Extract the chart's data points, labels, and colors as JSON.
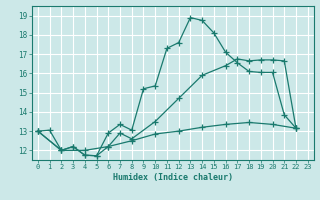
{
  "xlabel": "Humidex (Indice chaleur)",
  "bg_color": "#cce8e8",
  "grid_color": "#ffffff",
  "line_color": "#1a7a6e",
  "xlim": [
    -0.5,
    23.5
  ],
  "ylim": [
    11.5,
    19.5
  ],
  "xticks": [
    0,
    1,
    2,
    3,
    4,
    5,
    6,
    7,
    8,
    9,
    10,
    11,
    12,
    13,
    14,
    15,
    16,
    17,
    18,
    19,
    20,
    21,
    22,
    23
  ],
  "yticks": [
    12,
    13,
    14,
    15,
    16,
    17,
    18,
    19
  ],
  "line1_x": [
    0,
    1,
    2,
    3,
    4,
    5,
    6,
    7,
    8,
    9,
    10,
    11,
    12,
    13,
    14,
    15,
    16,
    17,
    18,
    19,
    20,
    21,
    22
  ],
  "line1_y": [
    13.0,
    13.05,
    12.0,
    12.2,
    11.75,
    11.72,
    12.9,
    13.35,
    13.05,
    15.2,
    15.35,
    17.3,
    17.6,
    18.9,
    18.75,
    18.1,
    17.1,
    16.55,
    16.1,
    16.05,
    16.05,
    13.85,
    13.15
  ],
  "line2_x": [
    0,
    2,
    3,
    4,
    5,
    6,
    7,
    8,
    10,
    12,
    14,
    16,
    17,
    18,
    19,
    20,
    21,
    22
  ],
  "line2_y": [
    13.0,
    12.0,
    12.2,
    11.75,
    11.72,
    12.2,
    12.9,
    12.6,
    13.5,
    14.7,
    15.9,
    16.4,
    16.75,
    16.65,
    16.7,
    16.7,
    16.65,
    13.15
  ],
  "line3_x": [
    0,
    2,
    4,
    6,
    8,
    10,
    12,
    14,
    16,
    18,
    20,
    22
  ],
  "line3_y": [
    13.0,
    12.0,
    12.0,
    12.2,
    12.5,
    12.85,
    13.0,
    13.2,
    13.35,
    13.45,
    13.35,
    13.15
  ]
}
